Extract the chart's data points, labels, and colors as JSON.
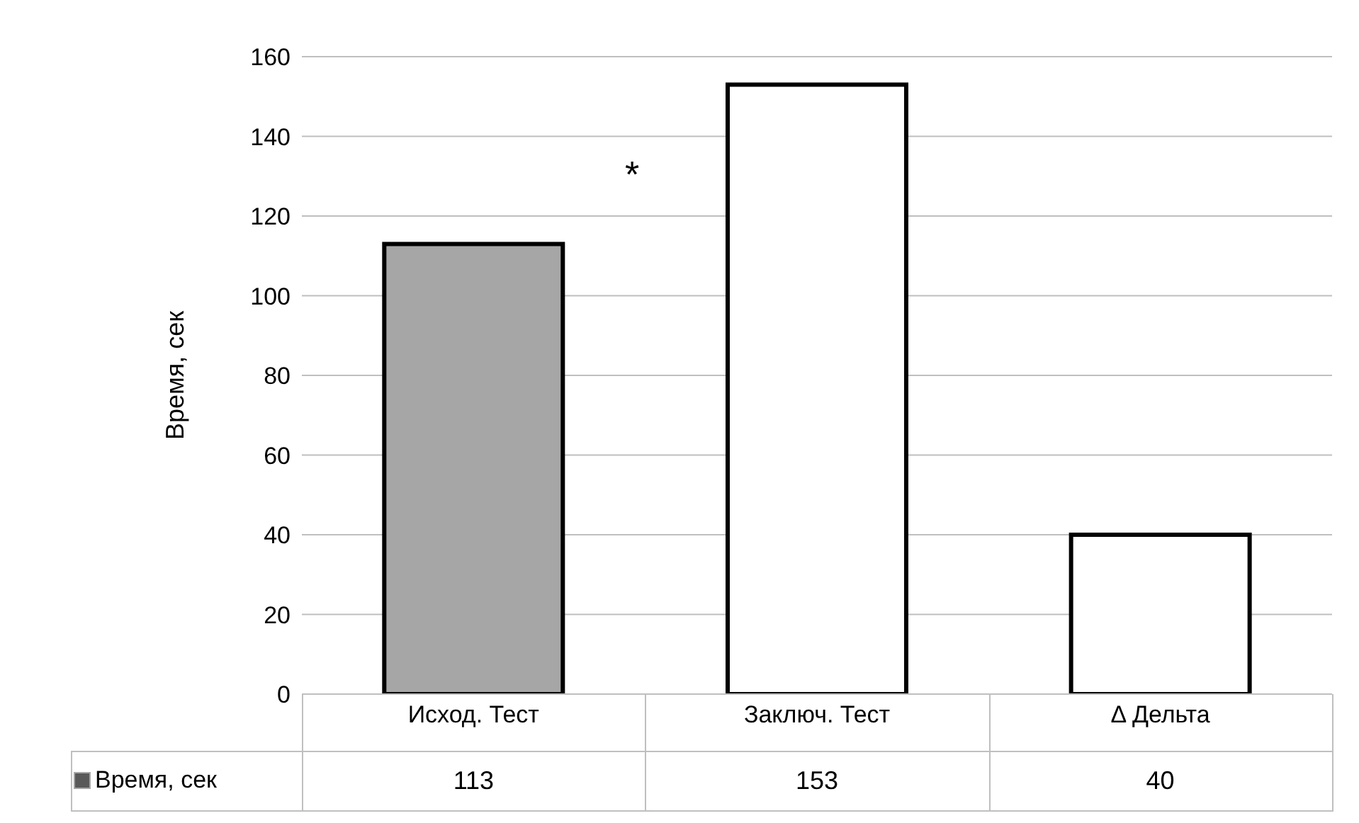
{
  "chart_data": {
    "type": "bar",
    "ylabel": "Время, сек",
    "categories": [
      "Исход. Тест",
      "Заключ. Тест",
      "Δ Дельта"
    ],
    "series": [
      {
        "name": "Время, сек",
        "color": "#a6a6a6",
        "colors": [
          "#a6a6a6",
          "#ffffff",
          "#ffffff"
        ],
        "values": [
          113,
          153,
          40
        ]
      }
    ],
    "ylim": [
      0,
      160
    ],
    "yticks": [
      0,
      20,
      40,
      60,
      80,
      100,
      120,
      140,
      160
    ],
    "grid": "y",
    "legend": "bottom",
    "data_labels": true,
    "annotations": [
      "*"
    ]
  }
}
